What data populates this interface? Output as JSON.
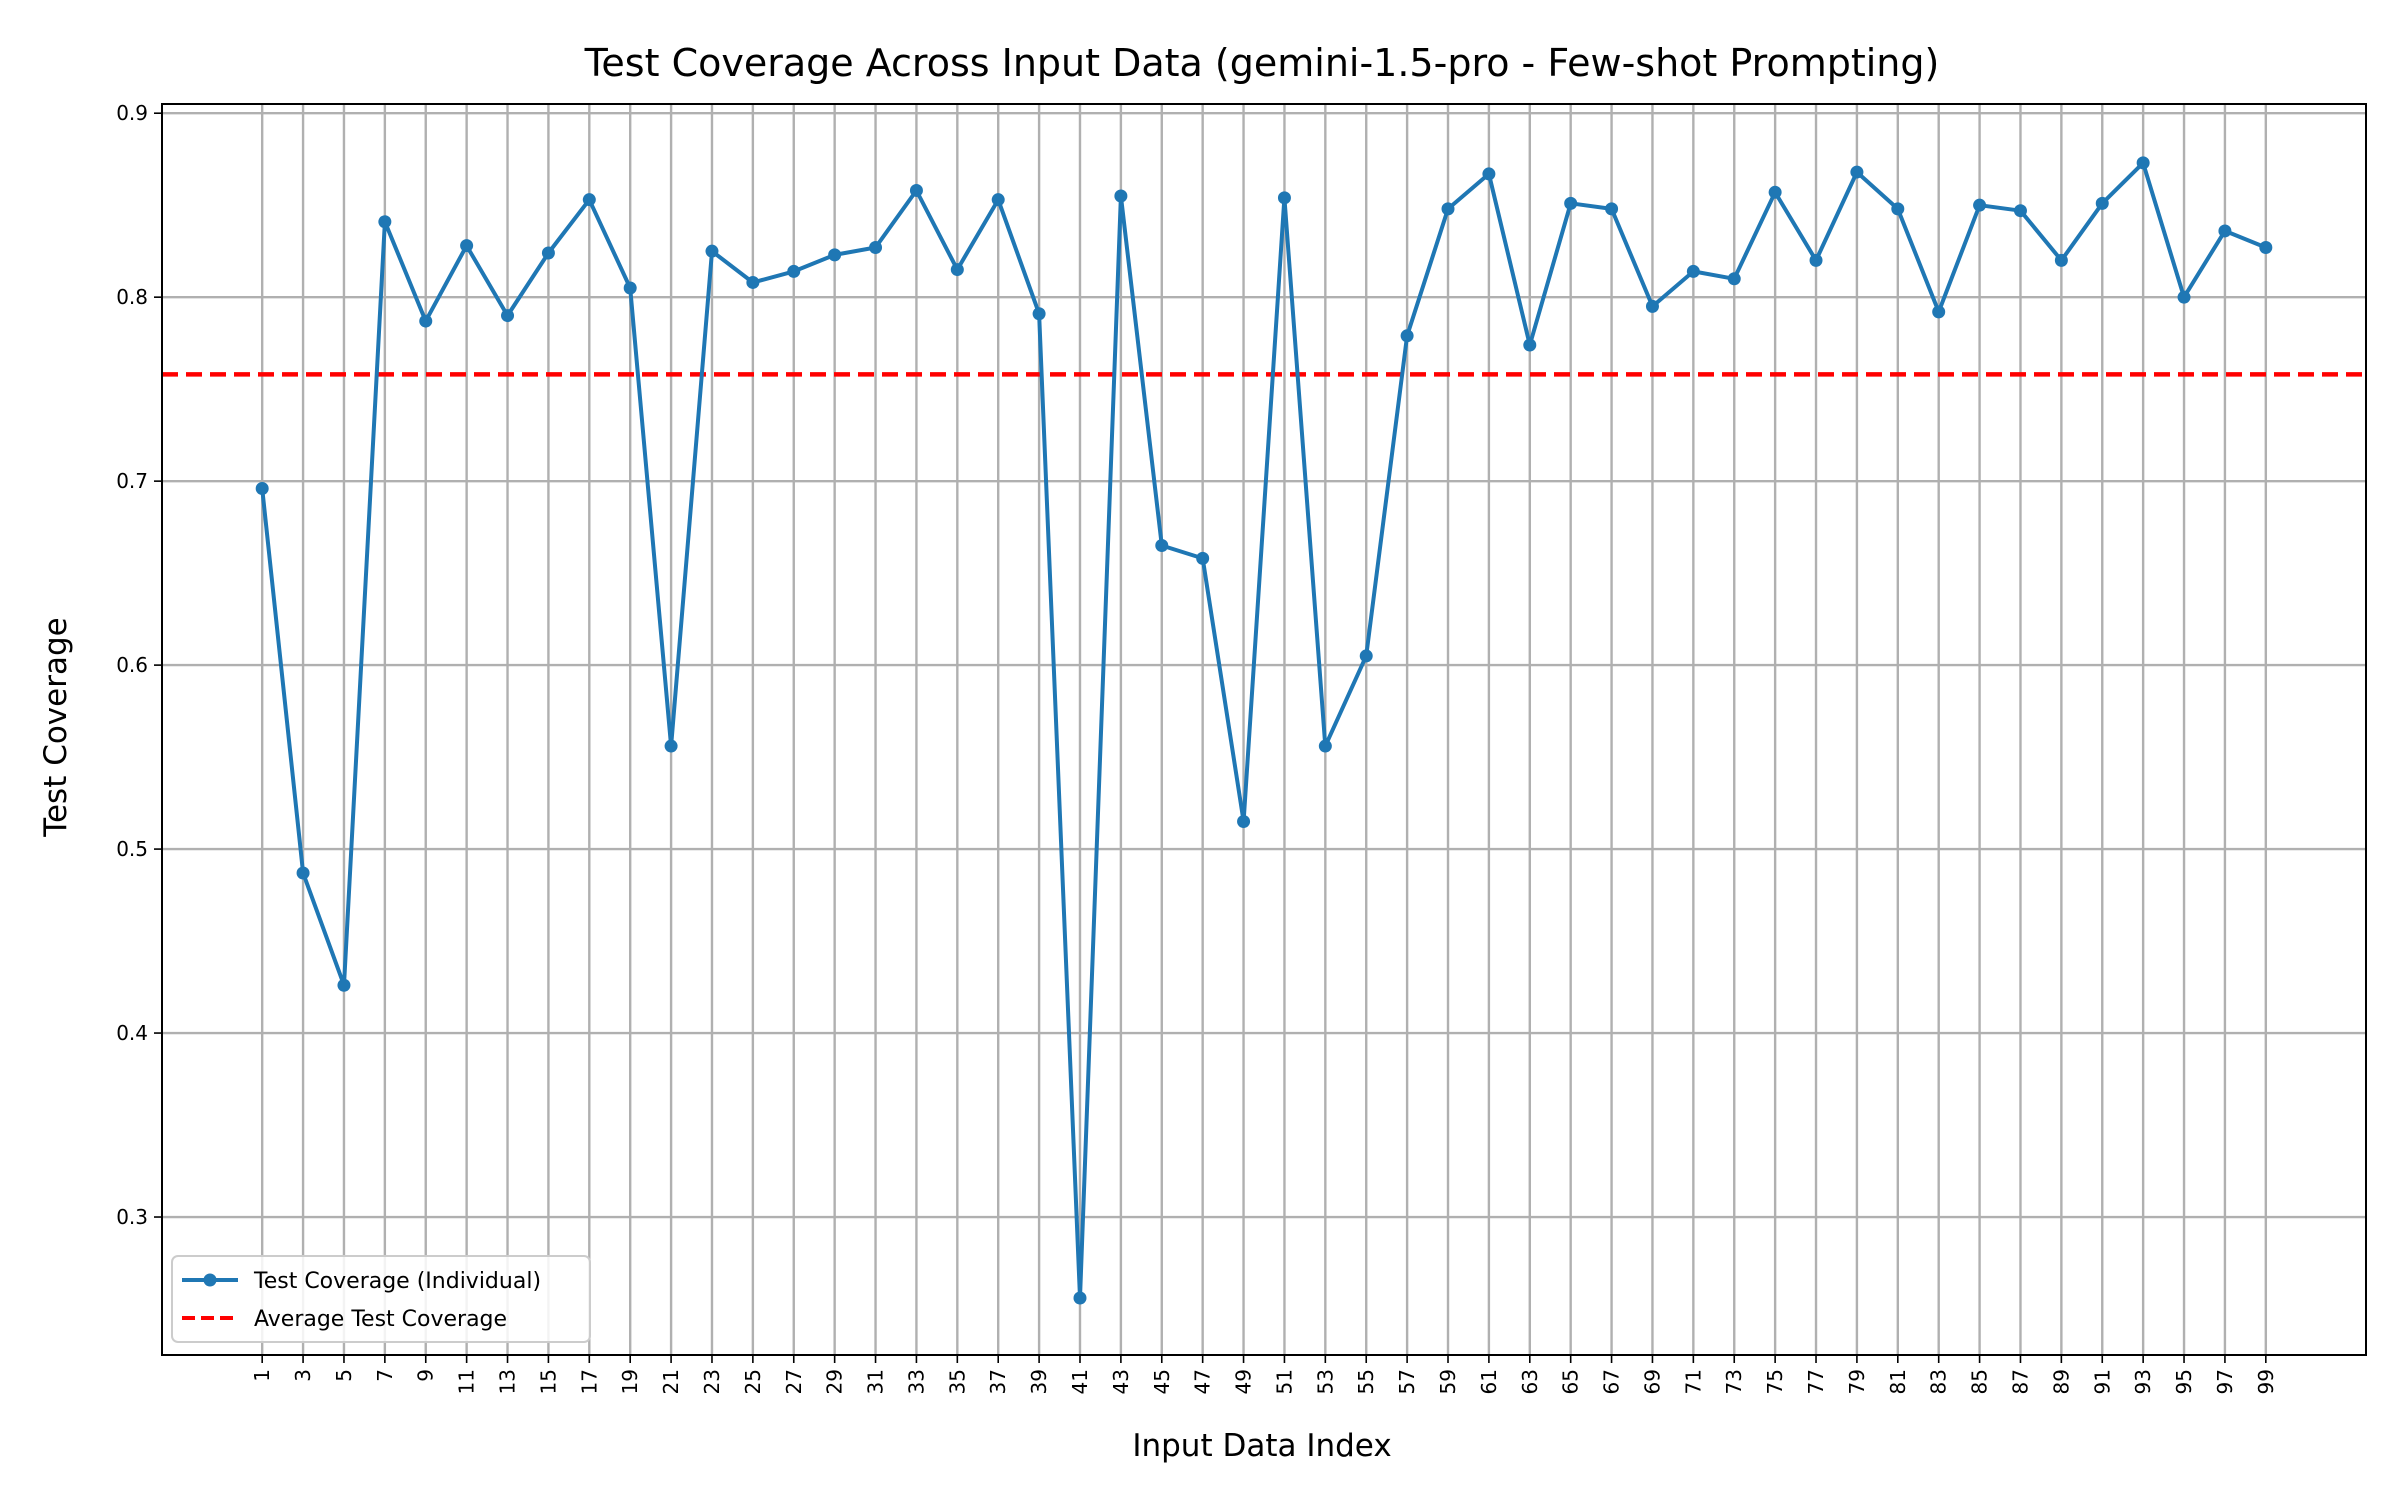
{
  "chart_data": {
    "type": "line",
    "title": "Test Coverage Across Input Data (gemini-1.5-pro - Few-shot Prompting)",
    "xlabel": "Input Data Index",
    "ylabel": "Test Coverage",
    "x": [
      1,
      3,
      5,
      7,
      9,
      11,
      13,
      15,
      17,
      19,
      21,
      23,
      25,
      27,
      29,
      31,
      33,
      35,
      37,
      39,
      41,
      43,
      45,
      47,
      49,
      51,
      53,
      55,
      57,
      59,
      61,
      63,
      65,
      67,
      69,
      71,
      73,
      75,
      77,
      79,
      81,
      83,
      85,
      87,
      89,
      91,
      93,
      95,
      97,
      99
    ],
    "xlim": [
      -3.9,
      103.9
    ],
    "ylim": [
      0.225,
      0.905
    ],
    "yticks": [
      0.3,
      0.4,
      0.5,
      0.6,
      0.7,
      0.8,
      0.9
    ],
    "xtick_labels": [
      "1",
      "3",
      "5",
      "7",
      "9",
      "11",
      "13",
      "15",
      "17",
      "19",
      "21",
      "23",
      "25",
      "27",
      "29",
      "31",
      "33",
      "35",
      "37",
      "39",
      "41",
      "43",
      "45",
      "47",
      "49",
      "51",
      "53",
      "55",
      "57",
      "59",
      "61",
      "63",
      "65",
      "67",
      "69",
      "71",
      "73",
      "75",
      "77",
      "79",
      "81",
      "83",
      "85",
      "87",
      "89",
      "91",
      "93",
      "95",
      "97",
      "99"
    ],
    "ytick_labels": [
      "0.3",
      "0.4",
      "0.5",
      "0.6",
      "0.7",
      "0.8",
      "0.9"
    ],
    "grid": true,
    "legend_position": "lower-left",
    "series": [
      {
        "name": "Test Coverage (Individual)",
        "color": "#1f77b4",
        "style": "line-with-markers",
        "values": [
          0.696,
          0.487,
          0.426,
          0.841,
          0.787,
          0.828,
          0.79,
          0.824,
          0.853,
          0.805,
          0.556,
          0.825,
          0.808,
          0.814,
          0.823,
          0.827,
          0.858,
          0.815,
          0.853,
          0.791,
          0.256,
          0.855,
          0.665,
          0.658,
          0.515,
          0.854,
          0.556,
          0.605,
          0.779,
          0.848,
          0.867,
          0.774,
          0.851,
          0.848,
          0.795,
          0.814,
          0.81,
          0.857,
          0.82,
          0.868,
          0.848,
          0.792,
          0.85,
          0.847,
          0.82,
          0.851,
          0.873,
          0.8,
          0.836,
          0.827
        ]
      }
    ],
    "reference_lines": [
      {
        "name": "Average Test Coverage",
        "value": 0.758,
        "color": "#ff0000",
        "style": "dashed"
      }
    ]
  }
}
